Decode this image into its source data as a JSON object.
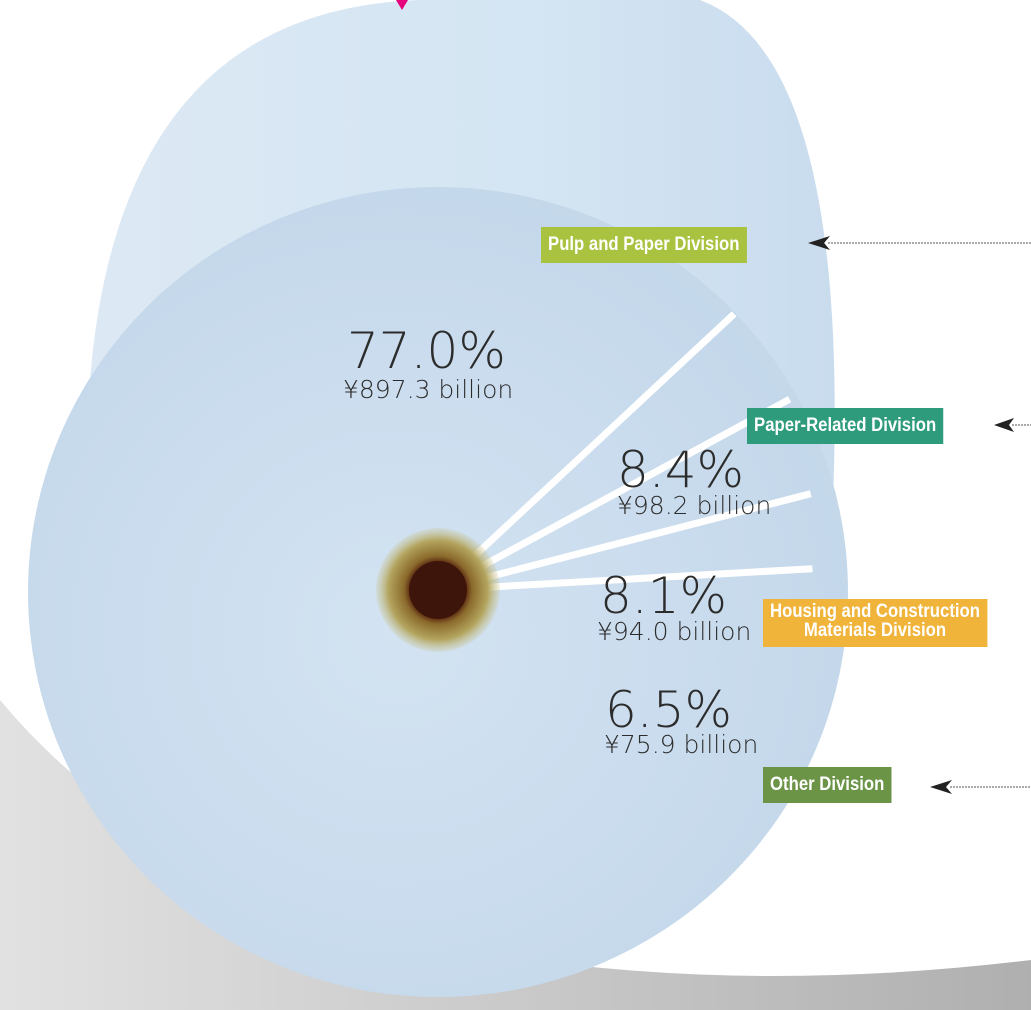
{
  "chart_data": {
    "type": "pie",
    "slices": [
      {
        "label": "Pulp and Paper Division",
        "percent": 77.0,
        "amount": "¥897.3 billion",
        "percent_text": "77.0%",
        "color": "#a9c23f"
      },
      {
        "label": "Paper-Related Division",
        "percent": 8.4,
        "amount": "¥98.2 billion",
        "percent_text": "8.4%",
        "color": "#2f9b7d"
      },
      {
        "label": "Housing and Construction Materials Division",
        "label_lines": [
          "Housing and Construction",
          "Materials Division"
        ],
        "percent": 8.1,
        "amount": "¥94.0 billion",
        "percent_text": "8.1%",
        "color": "#f0b43a"
      },
      {
        "label": "Other Division",
        "percent": 6.5,
        "amount": "¥75.9 billion",
        "percent_text": "6.5%",
        "color": "#6c9447"
      }
    ]
  },
  "colors": {
    "roll_face": "#cfe0f0",
    "roll_side": "#d9e8f4",
    "divider": "#ffffff",
    "core": "#4a1f0e",
    "marker": "#e6007e"
  }
}
